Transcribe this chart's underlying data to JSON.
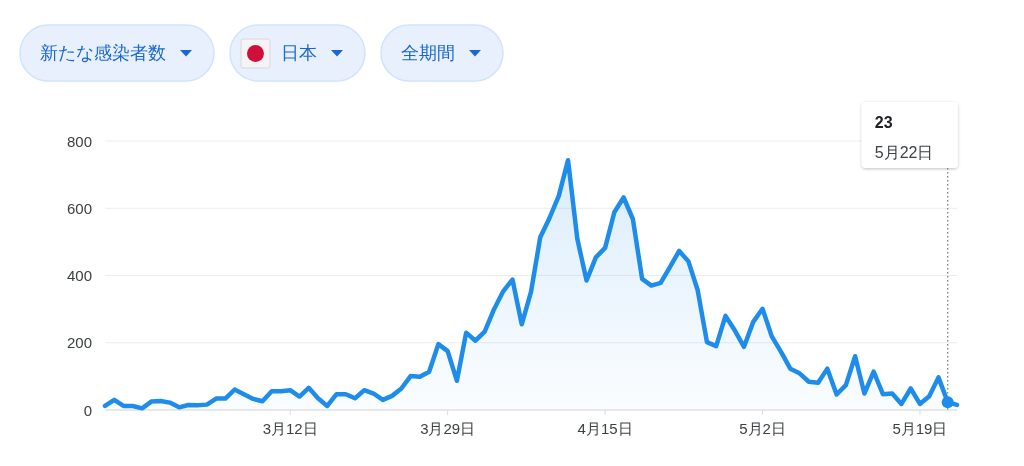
{
  "chart_data": {
    "type": "area",
    "x": [
      "--02-21",
      "--02-22",
      "--02-23",
      "--02-24",
      "--02-25",
      "--02-26",
      "--02-27",
      "--02-28",
      "--02-29",
      "--03-01",
      "--03-02",
      "--03-03",
      "--03-04",
      "--03-05",
      "--03-06",
      "--03-07",
      "--03-08",
      "--03-09",
      "--03-10",
      "--03-11",
      "--03-12",
      "--03-13",
      "--03-14",
      "--03-15",
      "--03-16",
      "--03-17",
      "--03-18",
      "--03-19",
      "--03-20",
      "--03-21",
      "--03-22",
      "--03-23",
      "--03-24",
      "--03-25",
      "--03-26",
      "--03-27",
      "--03-28",
      "--03-29",
      "--03-30",
      "--03-31",
      "--04-01",
      "--04-02",
      "--04-03",
      "--04-04",
      "--04-05",
      "--04-06",
      "--04-07",
      "--04-08",
      "--04-09",
      "--04-10",
      "--04-11",
      "--04-12",
      "--04-13",
      "--04-14",
      "--04-15",
      "--04-16",
      "--04-17",
      "--04-18",
      "--04-19",
      "--04-20",
      "--04-21",
      "--04-22",
      "--04-23",
      "--04-24",
      "--04-25",
      "--04-26",
      "--04-27",
      "--04-28",
      "--04-29",
      "--04-30",
      "--05-01",
      "--05-02",
      "--05-03",
      "--05-04",
      "--05-05",
      "--05-06",
      "--05-07",
      "--05-08",
      "--05-09",
      "--05-10",
      "--05-11",
      "--05-12",
      "--05-13",
      "--05-14",
      "--05-15",
      "--05-16",
      "--05-17",
      "--05-18",
      "--05-19",
      "--05-20",
      "--05-21",
      "--05-22",
      "--05-23"
    ],
    "series": [
      {
        "color": "#1e8ceb",
        "values": [
          12,
          30,
          12,
          12,
          5,
          25,
          27,
          22,
          8,
          15,
          14,
          16,
          34,
          34,
          61,
          47,
          33,
          26,
          56,
          56,
          59,
          40,
          66,
          35,
          12,
          47,
          47,
          35,
          59,
          49,
          30,
          42,
          64,
          101,
          99,
          114,
          196,
          175,
          87,
          230,
          206,
          233,
          299,
          353,
          388,
          255,
          351,
          514,
          571,
          637,
          743,
          509,
          385,
          454,
          482,
          588,
          632,
          568,
          390,
          370,
          378,
          425,
          473,
          442,
          356,
          202,
          190,
          280,
          237,
          188,
          262,
          301,
          219,
          173,
          123,
          109,
          84,
          81,
          123,
          46,
          74,
          160,
          49,
          114,
          47,
          49,
          18,
          64,
          18,
          41,
          97,
          23,
          15
        ]
      }
    ],
    "xlim": [
      "--02-21",
      "--05-23"
    ],
    "xticks": [
      {
        "value": "--03-12",
        "label": "3月12日"
      },
      {
        "value": "--03-29",
        "label": "3月29日"
      },
      {
        "value": "--04-15",
        "label": "4月15日"
      },
      {
        "value": "--05-02",
        "label": "5月2日"
      },
      {
        "value": "--05-19",
        "label": "5月19日"
      }
    ],
    "ylim": [
      0,
      800
    ],
    "yticks": [
      0,
      200,
      400,
      600,
      800
    ],
    "grid": "y",
    "annotations": [
      "新たな感染者数",
      "日本",
      "全期間",
      {
        "text": "23\n5月22日",
        "x": "--05-22",
        "y": 23
      }
    ]
  }
}
